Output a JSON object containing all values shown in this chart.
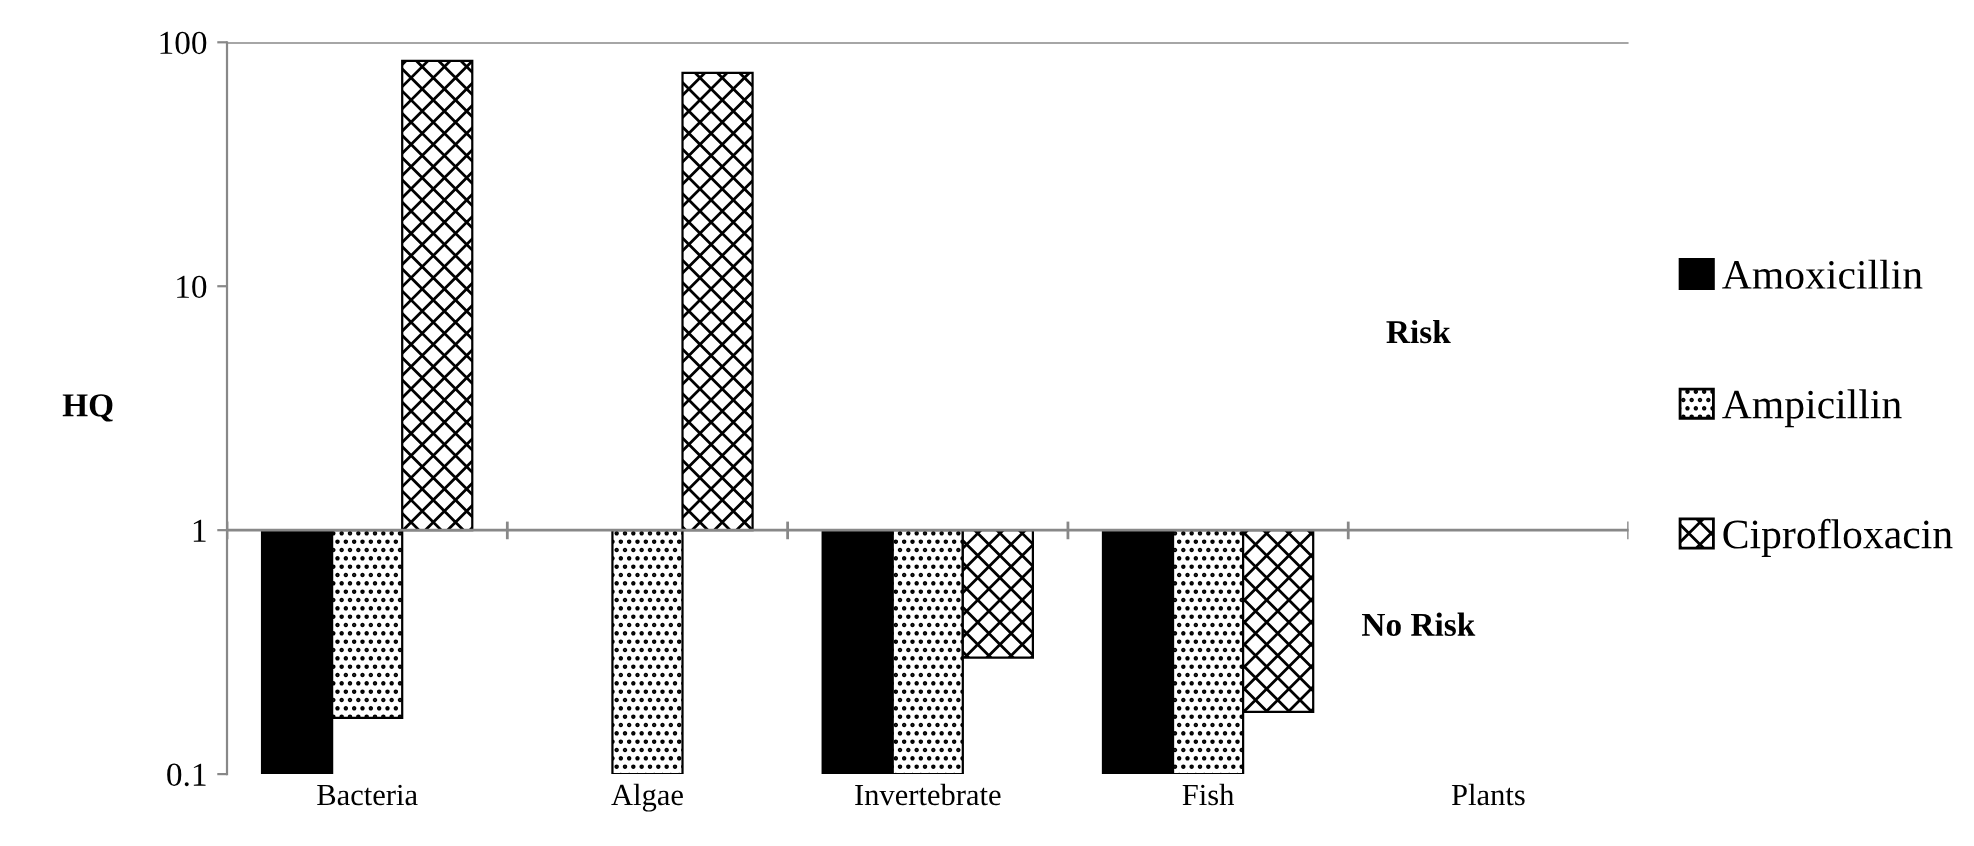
{
  "chart_data": {
    "type": "bar",
    "ylabel": "HQ",
    "log": "y",
    "ylim": [
      0.1,
      100
    ],
    "yticks": [
      0.1,
      1,
      10,
      100
    ],
    "grid": false,
    "legend": "right",
    "categories": [
      "Bacteria",
      "Algae",
      "Invertebrate",
      "Fish",
      "Plants"
    ],
    "series": [
      {
        "name": "Amoxicillin",
        "color": "#000000",
        "base": [
          1,
          null,
          1,
          1,
          null
        ],
        "values": [
          -0.9,
          null,
          -0.9,
          -0.9,
          null
        ]
      },
      {
        "name": "Ampicillin",
        "color": "#000000",
        "base": [
          1,
          1,
          1,
          1,
          null
        ],
        "values": [
          -0.83,
          -0.9,
          -0.9,
          -0.9,
          null
        ]
      },
      {
        "name": "Ciprofloxacin",
        "color": "#000000",
        "base": [
          1,
          1,
          1,
          1,
          null
        ],
        "values": [
          83,
          74,
          -0.7,
          -0.82,
          null
        ]
      }
    ],
    "ref_lines": [
      {
        "axis": "y",
        "value": 1
      }
    ],
    "annotations": [
      "Risk",
      "No Risk"
    ]
  }
}
